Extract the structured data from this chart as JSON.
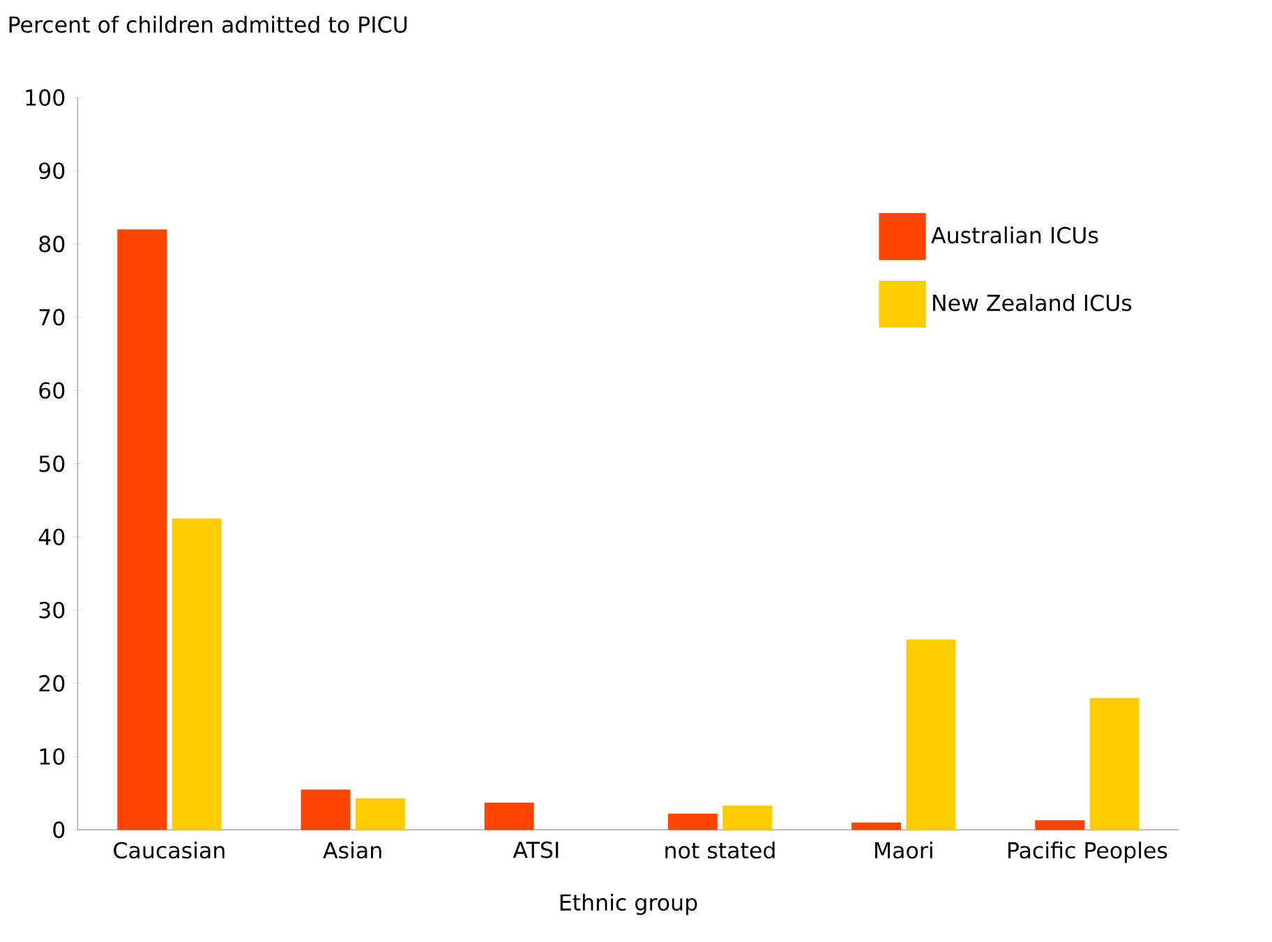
{
  "chart_data": {
    "type": "bar",
    "ylabel": "Percent of children admitted to PICU",
    "xlabel": "Ethnic group",
    "categories": [
      "Caucasian",
      "Asian",
      "ATSI",
      "not stated",
      "Maori",
      "Pacific Peoples"
    ],
    "series": [
      {
        "name": "Australian ICUs",
        "color": "#ff4400",
        "values": [
          82,
          5.5,
          3.7,
          2.2,
          1.0,
          1.3
        ]
      },
      {
        "name": "New Zealand ICUs",
        "color": "#ffcc00",
        "values": [
          42.5,
          4.3,
          null,
          3.3,
          26,
          18
        ]
      }
    ],
    "ylim": [
      0,
      100
    ],
    "yticks": [
      0,
      10,
      20,
      30,
      40,
      50,
      60,
      70,
      80,
      90,
      100
    ],
    "legend": "top right",
    "grid": false
  }
}
